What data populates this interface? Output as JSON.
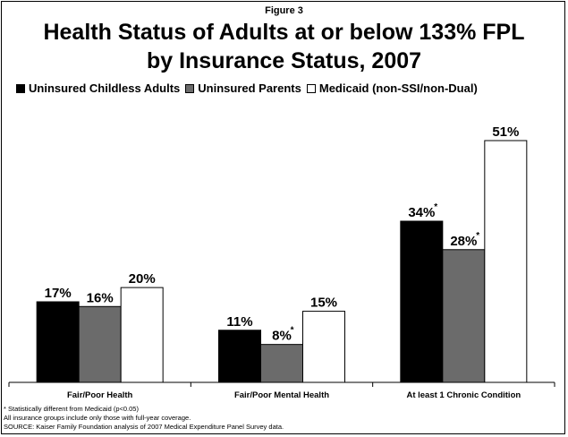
{
  "figure_label": "Figure 3",
  "title_line1": "Health Status of Adults at or below 133% FPL",
  "title_line2": "by Insurance Status, 2007",
  "notes": [
    "* Statistically different from Medicaid (p<0.05)",
    "All insurance groups include only those with full-year coverage.",
    "SOURCE: Kaiser Family Foundation analysis of 2007 Medical Expenditure Panel Survey data."
  ],
  "chart_data": {
    "type": "bar",
    "title": "Health Status of Adults at or below 133% FPL by Insurance Status, 2007",
    "categories": [
      "Fair/Poor Health",
      "Fair/Poor Mental Health",
      "At least 1 Chronic Condition"
    ],
    "series": [
      {
        "name": "Uninsured Childless Adults",
        "color": "#000000",
        "values": [
          17,
          11,
          34
        ],
        "labels": [
          "17%",
          "11%",
          "34%"
        ],
        "significant": [
          false,
          false,
          true
        ]
      },
      {
        "name": "Uninsured Parents",
        "color": "#6b6b6b",
        "values": [
          16,
          8,
          28
        ],
        "labels": [
          "16%",
          "8%",
          "28%"
        ],
        "significant": [
          false,
          true,
          true
        ]
      },
      {
        "name": "Medicaid (non-SSI/non-Dual)",
        "color": "#ffffff",
        "values": [
          20,
          15,
          51
        ],
        "labels": [
          "20%",
          "15%",
          "51%"
        ],
        "significant": [
          false,
          false,
          false
        ]
      }
    ],
    "significance_marker": "*",
    "ylim": [
      0,
      55
    ],
    "legend_position": "top",
    "grid": false
  }
}
